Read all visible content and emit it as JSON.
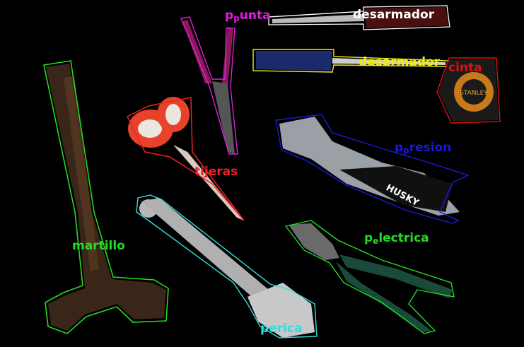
{
  "image": {
    "background": "#000000",
    "tools": [
      {
        "id": "martillo",
        "label": "martillo",
        "color": "#22dd22"
      },
      {
        "id": "tijeras",
        "label": "tijeras",
        "color": "#ee2222"
      },
      {
        "id": "punta",
        "label_main": "p",
        "label_sub": "p",
        "label_rest": "unta",
        "color": "#dd22dd"
      },
      {
        "id": "desarmador1",
        "label": "desarmador",
        "color": "#ffffff"
      },
      {
        "id": "desarmador2",
        "label": "desarmador",
        "color": "#eeee11"
      },
      {
        "id": "cinta",
        "label": "cinta",
        "color": "#dd1111"
      },
      {
        "id": "presion",
        "label_main": "p",
        "label_sub": "p",
        "label_rest": "resion",
        "color": "#1a1add"
      },
      {
        "id": "electrica",
        "label_main": "p",
        "label_sub": "e",
        "label_rest": "lectrica",
        "color": "#22dd22"
      },
      {
        "id": "perica",
        "label": "perica",
        "color": "#33dddd"
      }
    ],
    "brand_text": {
      "tape": "STANLEY",
      "pliers": "HUSKY"
    }
  }
}
